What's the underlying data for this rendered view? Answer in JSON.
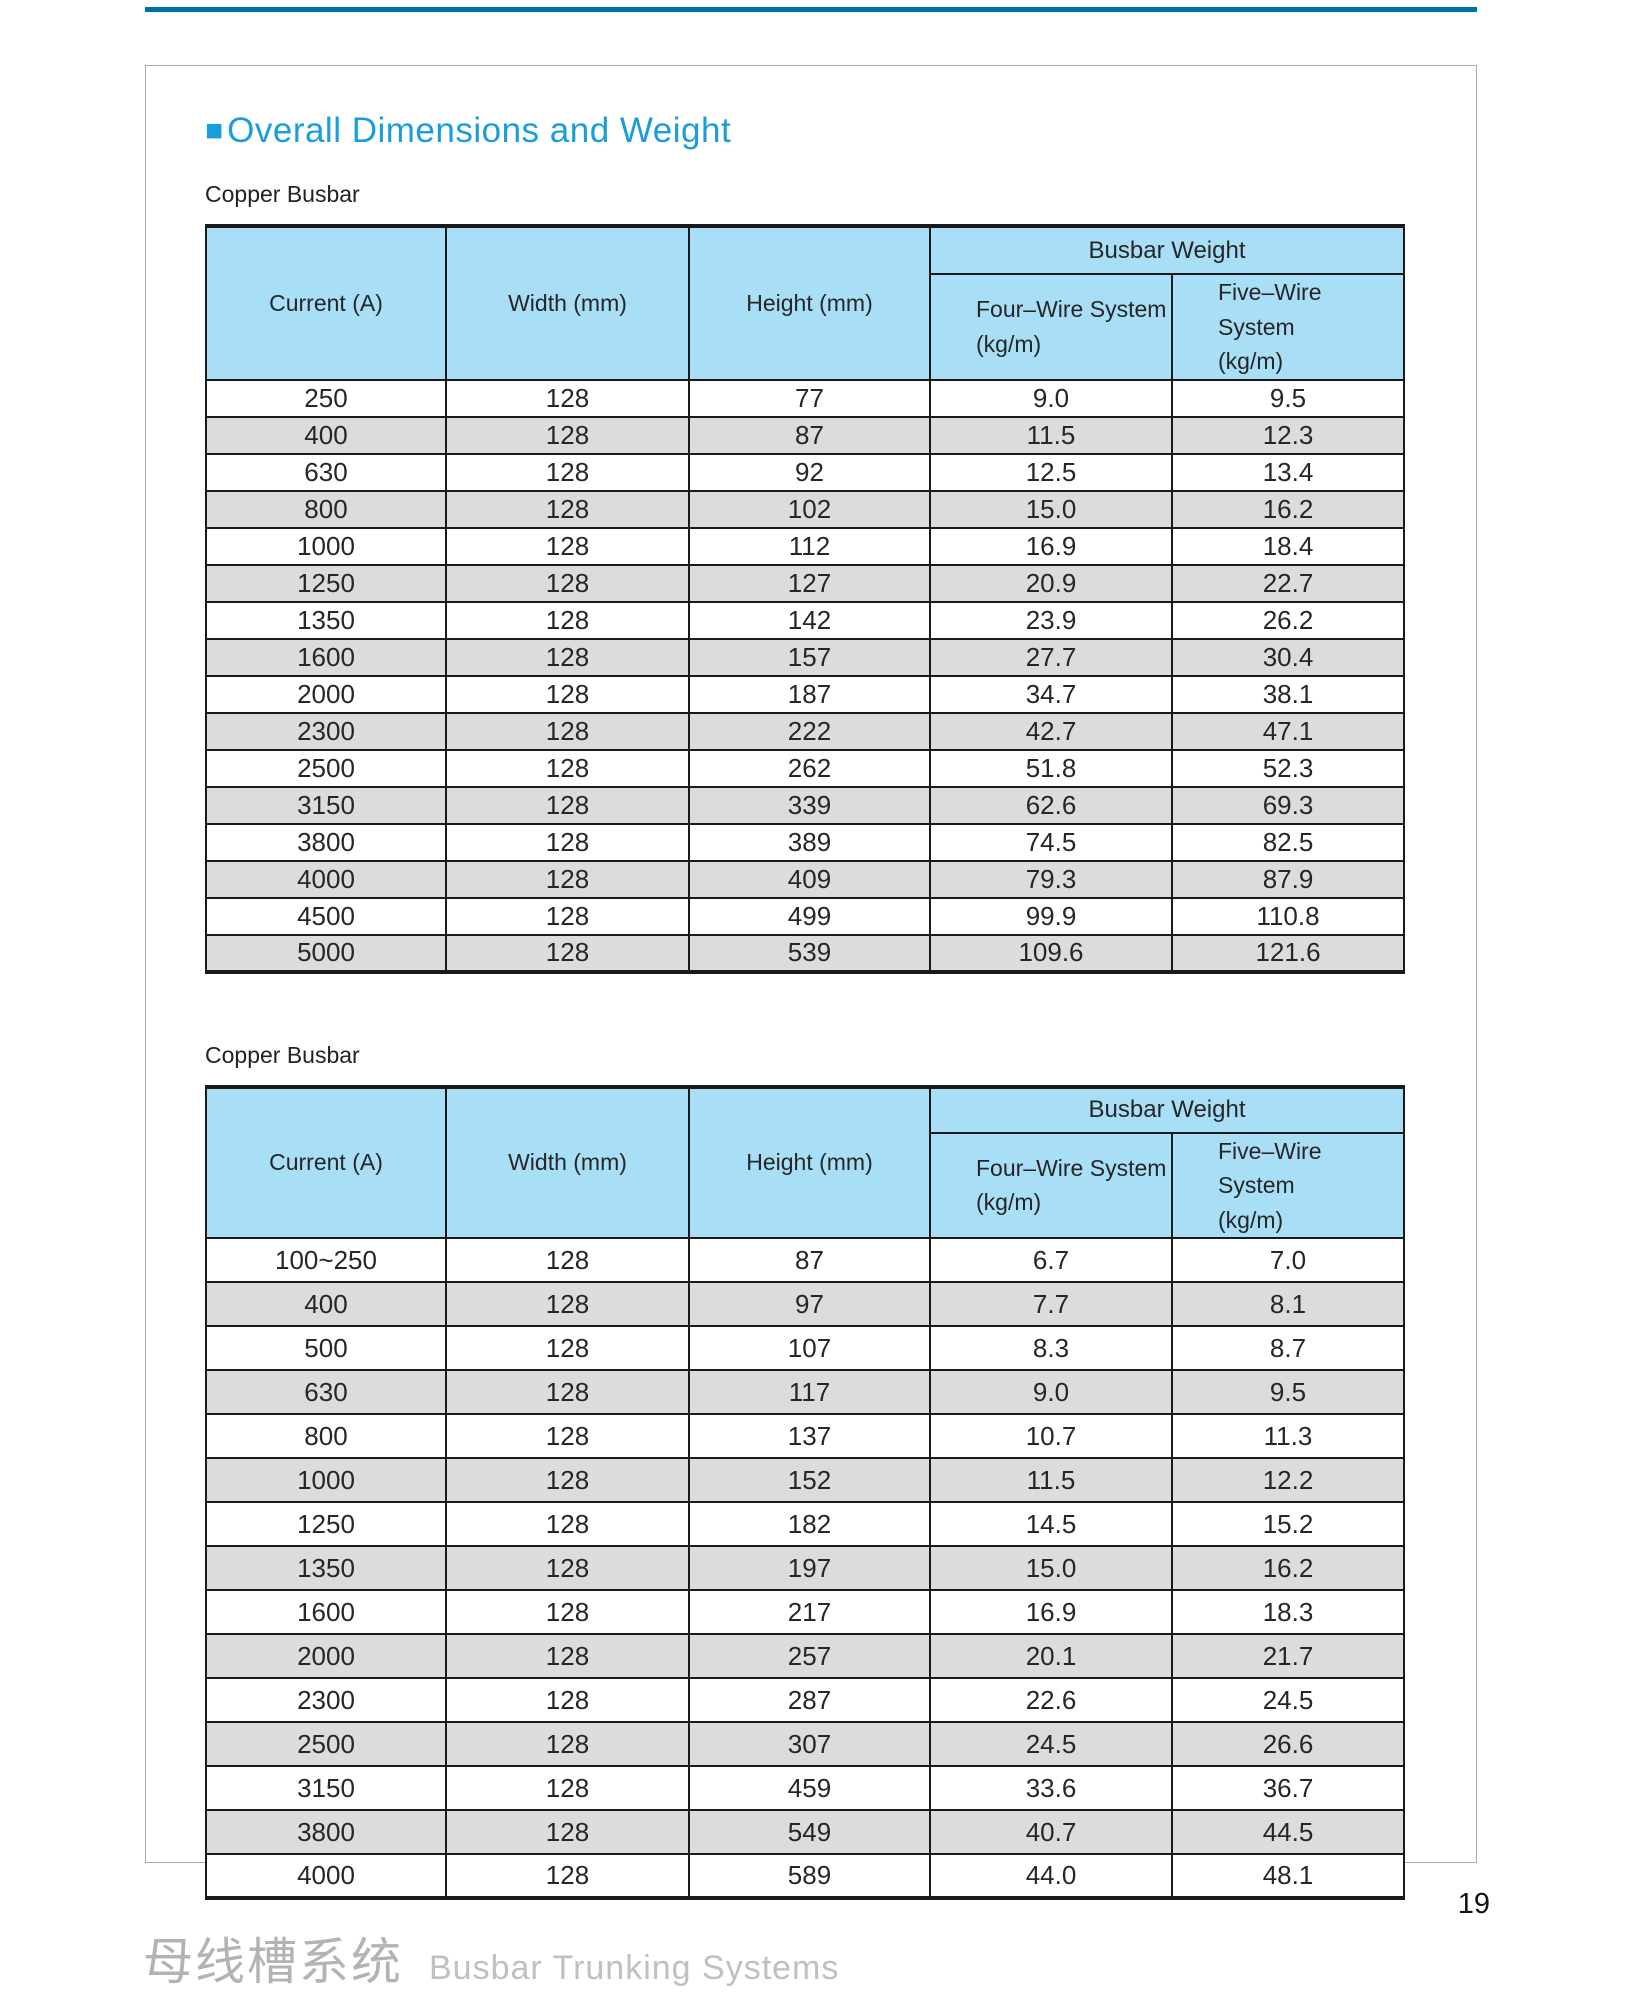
{
  "page": {
    "title": "Overall Dimensions and Weight",
    "bullet": "■",
    "page_number": "19",
    "footer_cn": "母线槽系统",
    "footer_en": "Busbar Trunking Systems"
  },
  "colors": {
    "accent_blue": "#1A9DDB",
    "top_line_blue": "#0070A9",
    "table_header_bg": "#A8DFF7",
    "row_stripe_gray": "#DCDCDC",
    "table_border": "#1A1A1A"
  },
  "tables": [
    {
      "label": "Copper Busbar",
      "headers": {
        "current": "Current (A)",
        "width": "Width (mm)",
        "height": "Height (mm)",
        "busbar_weight": "Busbar Weight",
        "four_wire": "Four–Wire System",
        "four_wire_unit": "(kg/m)",
        "five_wire": "Five–Wire System",
        "five_wire_unit": "(kg/m)"
      },
      "rows": [
        [
          "250",
          "128",
          "77",
          "9.0",
          "9.5"
        ],
        [
          "400",
          "128",
          "87",
          "11.5",
          "12.3"
        ],
        [
          "630",
          "128",
          "92",
          "12.5",
          "13.4"
        ],
        [
          "800",
          "128",
          "102",
          "15.0",
          "16.2"
        ],
        [
          "1000",
          "128",
          "112",
          "16.9",
          "18.4"
        ],
        [
          "1250",
          "128",
          "127",
          "20.9",
          "22.7"
        ],
        [
          "1350",
          "128",
          "142",
          "23.9",
          "26.2"
        ],
        [
          "1600",
          "128",
          "157",
          "27.7",
          "30.4"
        ],
        [
          "2000",
          "128",
          "187",
          "34.7",
          "38.1"
        ],
        [
          "2300",
          "128",
          "222",
          "42.7",
          "47.1"
        ],
        [
          "2500",
          "128",
          "262",
          "51.8",
          "52.3"
        ],
        [
          "3150",
          "128",
          "339",
          "62.6",
          "69.3"
        ],
        [
          "3800",
          "128",
          "389",
          "74.5",
          "82.5"
        ],
        [
          "4000",
          "128",
          "409",
          "79.3",
          "87.9"
        ],
        [
          "4500",
          "128",
          "499",
          "99.9",
          "110.8"
        ],
        [
          "5000",
          "128",
          "539",
          "109.6",
          "121.6"
        ]
      ]
    },
    {
      "label": "Copper Busbar",
      "headers": {
        "current": "Current (A)",
        "width": "Width (mm)",
        "height": "Height (mm)",
        "busbar_weight": "Busbar Weight",
        "four_wire": "Four–Wire System",
        "four_wire_unit": "(kg/m)",
        "five_wire": "Five–Wire System",
        "five_wire_unit": "(kg/m)"
      },
      "rows": [
        [
          "100~250",
          "128",
          "87",
          "6.7",
          "7.0"
        ],
        [
          "400",
          "128",
          "97",
          "7.7",
          "8.1"
        ],
        [
          "500",
          "128",
          "107",
          "8.3",
          "8.7"
        ],
        [
          "630",
          "128",
          "117",
          "9.0",
          "9.5"
        ],
        [
          "800",
          "128",
          "137",
          "10.7",
          "11.3"
        ],
        [
          "1000",
          "128",
          "152",
          "11.5",
          "12.2"
        ],
        [
          "1250",
          "128",
          "182",
          "14.5",
          "15.2"
        ],
        [
          "1350",
          "128",
          "197",
          "15.0",
          "16.2"
        ],
        [
          "1600",
          "128",
          "217",
          "16.9",
          "18.3"
        ],
        [
          "2000",
          "128",
          "257",
          "20.1",
          "21.7"
        ],
        [
          "2300",
          "128",
          "287",
          "22.6",
          "24.5"
        ],
        [
          "2500",
          "128",
          "307",
          "24.5",
          "26.6"
        ],
        [
          "3150",
          "128",
          "459",
          "33.6",
          "36.7"
        ],
        [
          "3800",
          "128",
          "549",
          "40.7",
          "44.5"
        ],
        [
          "4000",
          "128",
          "589",
          "44.0",
          "48.1"
        ]
      ]
    }
  ]
}
